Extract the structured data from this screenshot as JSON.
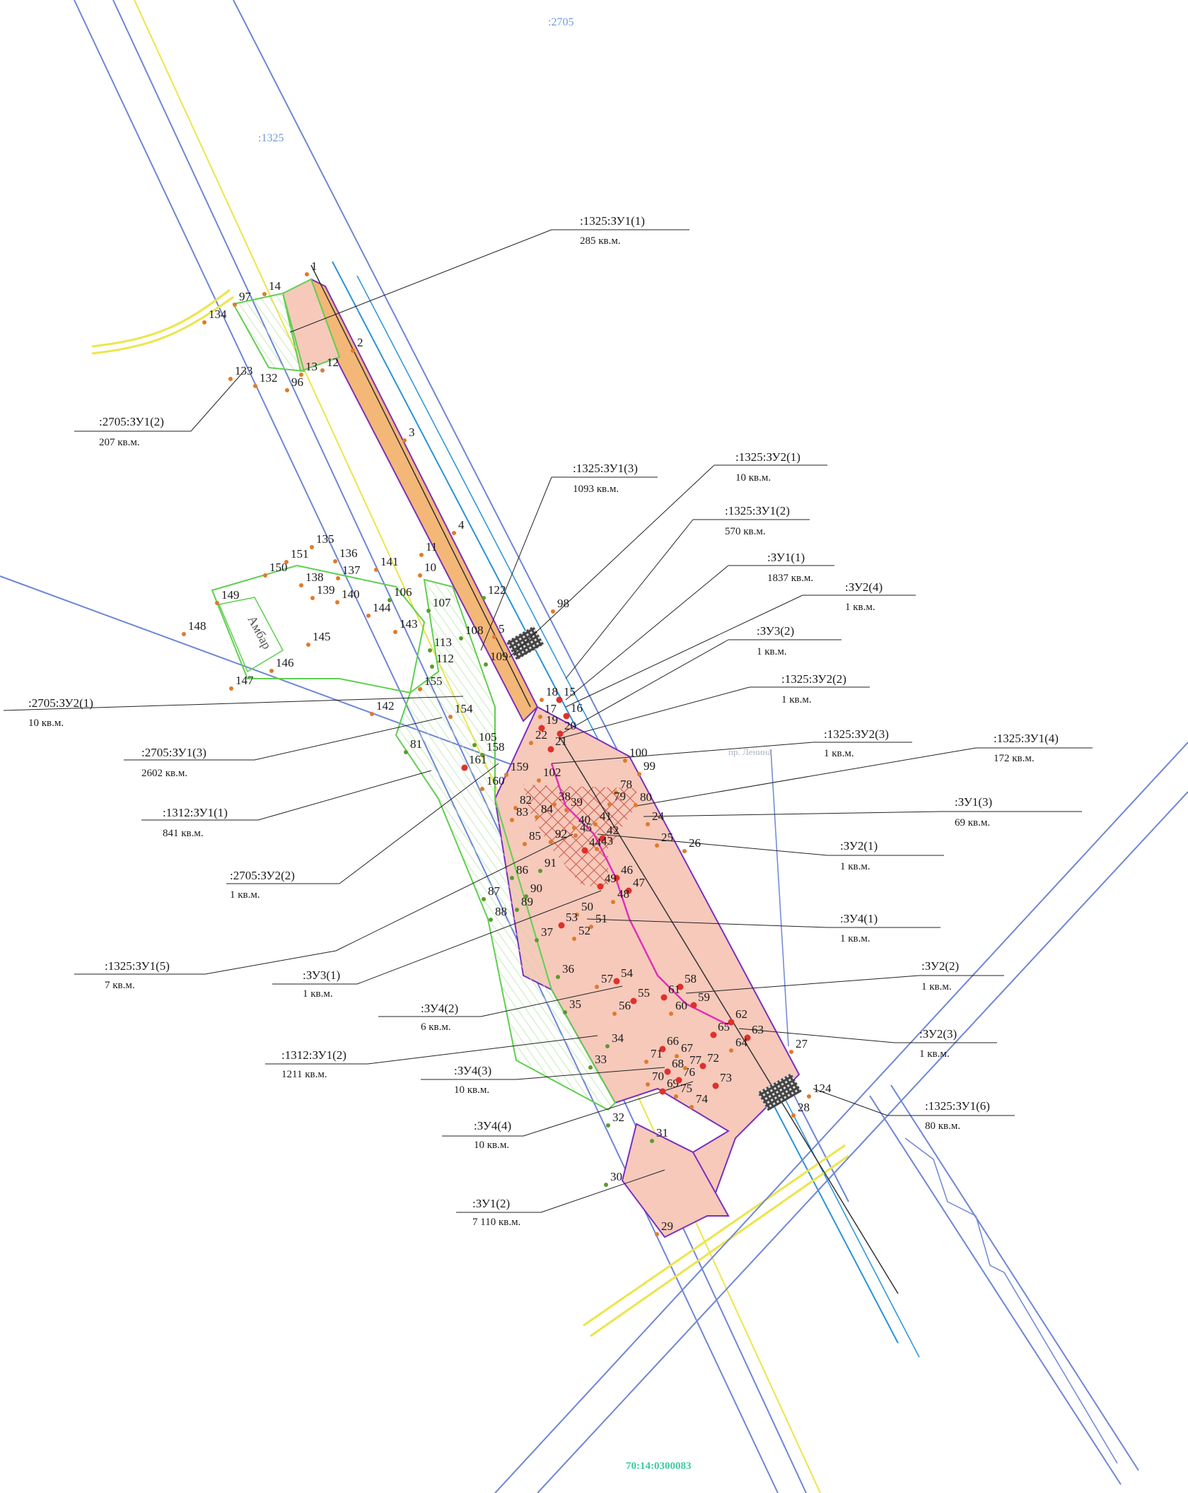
{
  "map": {
    "cadastral_labels": [
      ":2705",
      ":1325"
    ],
    "quarter_number": "70:14:0300083",
    "road_label": "пр. Ленина",
    "barn_label": "Амбар",
    "colors": {
      "main_parcel_fill": "#f6c9bb",
      "orange_strip_fill": "#f3b777",
      "blue_line": "#6e86d6",
      "cyan_line": "#2a93d8",
      "green_boundary": "#5fcf4f",
      "purple_boundary": "#7a2fbf",
      "magenta_line": "#e02fb8",
      "yellow_road": "#ece54a",
      "hatch_red": "#c0392b",
      "point_red": "#e0302a",
      "point_green": "#5c9a2f",
      "point_orange": "#e07a2a"
    }
  },
  "callouts": [
    {
      "id": "c1",
      "title": ":1325:ЗУ1(1)",
      "area": "285 кв.м."
    },
    {
      "id": "c2",
      "title": ":2705:ЗУ1(2)",
      "area": "207 кв.м."
    },
    {
      "id": "c3",
      "title": ":1325:ЗУ1(3)",
      "area": "1093 кв.м."
    },
    {
      "id": "c4",
      "title": ":1325:ЗУ2(1)",
      "area": "10 кв.м."
    },
    {
      "id": "c5",
      "title": ":1325:ЗУ1(2)",
      "area": "570 кв.м."
    },
    {
      "id": "c6",
      "title": ":ЗУ1(1)",
      "area": "1837 кв.м."
    },
    {
      "id": "c7",
      "title": ":ЗУ2(4)",
      "area": "1 кв.м."
    },
    {
      "id": "c8",
      "title": ":ЗУ3(2)",
      "area": "1 кв.м."
    },
    {
      "id": "c9",
      "title": ":1325:ЗУ2(2)",
      "area": "1 кв.м."
    },
    {
      "id": "c10",
      "title": ":2705:ЗУ2(1)",
      "area": "10 кв.м."
    },
    {
      "id": "c11",
      "title": ":2705:ЗУ1(3)",
      "area": "2602 кв.м."
    },
    {
      "id": "c12",
      "title": ":1325:ЗУ2(3)",
      "area": "1 кв.м."
    },
    {
      "id": "c13",
      "title": ":1325:ЗУ1(4)",
      "area": "172 кв.м."
    },
    {
      "id": "c14",
      "title": ":1312:ЗУ1(1)",
      "area": "841 кв.м."
    },
    {
      "id": "c15",
      "title": ":ЗУ1(3)",
      "area": "69 кв.м."
    },
    {
      "id": "c16",
      "title": ":2705:ЗУ2(2)",
      "area": "1 кв.м."
    },
    {
      "id": "c17",
      "title": ":ЗУ2(1)",
      "area": "1 кв.м."
    },
    {
      "id": "c18",
      "title": ":ЗУ4(1)",
      "area": "1 кв.м."
    },
    {
      "id": "c19",
      "title": ":1325:ЗУ1(5)",
      "area": "7 кв.м."
    },
    {
      "id": "c20",
      "title": ":ЗУ3(1)",
      "area": "1 кв.м."
    },
    {
      "id": "c21",
      "title": ":ЗУ2(2)",
      "area": "1 кв.м."
    },
    {
      "id": "c22",
      "title": ":ЗУ4(2)",
      "area": "6 кв.м."
    },
    {
      "id": "c23",
      "title": ":ЗУ2(3)",
      "area": "1 кв.м."
    },
    {
      "id": "c24",
      "title": ":1312:ЗУ1(2)",
      "area": "1211 кв.м."
    },
    {
      "id": "c25",
      "title": ":ЗУ4(3)",
      "area": "10 кв.м."
    },
    {
      "id": "c26",
      "title": ":1325:ЗУ1(6)",
      "area": "80 кв.м."
    },
    {
      "id": "c27",
      "title": ":ЗУ4(4)",
      "area": "10 кв.м."
    },
    {
      "id": "c28",
      "title": ":ЗУ1(2)",
      "area": "7 110 кв.м."
    }
  ],
  "points": [
    {
      "n": "1"
    },
    {
      "n": "2"
    },
    {
      "n": "3"
    },
    {
      "n": "4"
    },
    {
      "n": "5"
    },
    {
      "n": "10"
    },
    {
      "n": "11"
    },
    {
      "n": "12"
    },
    {
      "n": "13"
    },
    {
      "n": "14"
    },
    {
      "n": "15"
    },
    {
      "n": "16"
    },
    {
      "n": "17"
    },
    {
      "n": "18"
    },
    {
      "n": "19"
    },
    {
      "n": "20"
    },
    {
      "n": "21"
    },
    {
      "n": "22"
    },
    {
      "n": "24"
    },
    {
      "n": "25"
    },
    {
      "n": "26"
    },
    {
      "n": "27"
    },
    {
      "n": "28"
    },
    {
      "n": "29"
    },
    {
      "n": "30"
    },
    {
      "n": "31"
    },
    {
      "n": "32"
    },
    {
      "n": "33"
    },
    {
      "n": "34"
    },
    {
      "n": "35"
    },
    {
      "n": "36"
    },
    {
      "n": "37"
    },
    {
      "n": "38"
    },
    {
      "n": "39"
    },
    {
      "n": "40"
    },
    {
      "n": "41"
    },
    {
      "n": "42"
    },
    {
      "n": "43"
    },
    {
      "n": "44"
    },
    {
      "n": "45"
    },
    {
      "n": "46"
    },
    {
      "n": "47"
    },
    {
      "n": "48"
    },
    {
      "n": "49"
    },
    {
      "n": "50"
    },
    {
      "n": "51"
    },
    {
      "n": "52"
    },
    {
      "n": "53"
    },
    {
      "n": "54"
    },
    {
      "n": "55"
    },
    {
      "n": "56"
    },
    {
      "n": "57"
    },
    {
      "n": "58"
    },
    {
      "n": "59"
    },
    {
      "n": "60"
    },
    {
      "n": "61"
    },
    {
      "n": "62"
    },
    {
      "n": "63"
    },
    {
      "n": "64"
    },
    {
      "n": "65"
    },
    {
      "n": "66"
    },
    {
      "n": "67"
    },
    {
      "n": "68"
    },
    {
      "n": "69"
    },
    {
      "n": "70"
    },
    {
      "n": "71"
    },
    {
      "n": "72"
    },
    {
      "n": "73"
    },
    {
      "n": "74"
    },
    {
      "n": "75"
    },
    {
      "n": "76"
    },
    {
      "n": "77"
    },
    {
      "n": "78"
    },
    {
      "n": "79"
    },
    {
      "n": "80"
    },
    {
      "n": "81"
    },
    {
      "n": "82"
    },
    {
      "n": "83"
    },
    {
      "n": "84"
    },
    {
      "n": "85"
    },
    {
      "n": "86"
    },
    {
      "n": "87"
    },
    {
      "n": "88"
    },
    {
      "n": "89"
    },
    {
      "n": "90"
    },
    {
      "n": "91"
    },
    {
      "n": "92"
    },
    {
      "n": "96"
    },
    {
      "n": "97"
    },
    {
      "n": "98"
    },
    {
      "n": "99"
    },
    {
      "n": "100"
    },
    {
      "n": "102"
    },
    {
      "n": "105"
    },
    {
      "n": "106"
    },
    {
      "n": "107"
    },
    {
      "n": "108"
    },
    {
      "n": "109"
    },
    {
      "n": "112"
    },
    {
      "n": "113"
    },
    {
      "n": "122"
    },
    {
      "n": "124"
    },
    {
      "n": "132"
    },
    {
      "n": "133"
    },
    {
      "n": "134"
    },
    {
      "n": "135"
    },
    {
      "n": "136"
    },
    {
      "n": "137"
    },
    {
      "n": "138"
    },
    {
      "n": "139"
    },
    {
      "n": "140"
    },
    {
      "n": "141"
    },
    {
      "n": "142"
    },
    {
      "n": "143"
    },
    {
      "n": "144"
    },
    {
      "n": "145"
    },
    {
      "n": "146"
    },
    {
      "n": "147"
    },
    {
      "n": "148"
    },
    {
      "n": "149"
    },
    {
      "n": "150"
    },
    {
      "n": "151"
    },
    {
      "n": "154"
    },
    {
      "n": "155"
    },
    {
      "n": "158"
    },
    {
      "n": "159"
    },
    {
      "n": "160"
    },
    {
      "n": "161"
    }
  ]
}
